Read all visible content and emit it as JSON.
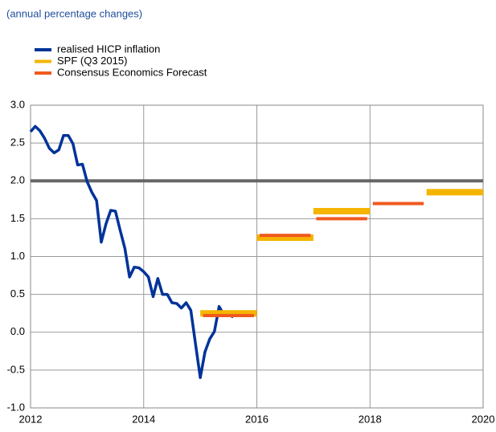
{
  "chart_data": {
    "type": "line",
    "subtitle": "(annual percentage changes)",
    "xlim": [
      2012,
      2020
    ],
    "ylim": [
      -1,
      3
    ],
    "xticks": [
      2012,
      2014,
      2016,
      2018,
      2020
    ],
    "yticks": [
      {
        "value": 3,
        "label": "3.0"
      },
      2.5,
      {
        "value": 2,
        "label": "2.0"
      },
      1.5,
      {
        "value": 1,
        "label": "1.0"
      },
      0.5,
      {
        "value": 0,
        "label": "0.0"
      },
      -0.5,
      {
        "value": -1,
        "label": "-1.0"
      }
    ],
    "grid": true,
    "reference_line": {
      "value": 2,
      "color": "#666666"
    },
    "series": [
      {
        "name": "realised HICP inflation",
        "color": "#003399",
        "x": [
          2012,
          2012.083,
          2012.167,
          2012.25,
          2012.333,
          2012.417,
          2012.5,
          2012.583,
          2012.667,
          2012.75,
          2012.833,
          2012.917,
          2013,
          2013.083,
          2013.167,
          2013.25,
          2013.333,
          2013.417,
          2013.5,
          2013.583,
          2013.667,
          2013.75,
          2013.833,
          2013.917,
          2014,
          2014.083,
          2014.167,
          2014.25,
          2014.333,
          2014.417,
          2014.5,
          2014.583,
          2014.667,
          2014.75,
          2014.833,
          2014.917,
          2015,
          2015.083,
          2015.167,
          2015.25,
          2015.333,
          2015.417,
          2015.5,
          2015.583
        ],
        "values": [
          2.65,
          2.72,
          2.66,
          2.56,
          2.43,
          2.37,
          2.41,
          2.6,
          2.6,
          2.49,
          2.21,
          2.22,
          1.99,
          1.85,
          1.74,
          1.19,
          1.43,
          1.61,
          1.6,
          1.35,
          1.11,
          0.73,
          0.86,
          0.85,
          0.8,
          0.73,
          0.47,
          0.71,
          0.5,
          0.5,
          0.39,
          0.38,
          0.32,
          0.39,
          0.29,
          -0.16,
          -0.6,
          -0.26,
          -0.09,
          0.01,
          0.34,
          0.23,
          0.24,
          0.2
        ]
      },
      {
        "name": "SPF (Q3 2015)",
        "color": "#f5b400",
        "start": [
          2015,
          2016,
          2017,
          2019
        ],
        "end": [
          2016,
          2017,
          2018,
          2020
        ],
        "values": [
          0.25,
          1.25,
          1.6,
          1.85
        ]
      },
      {
        "name": "Consensus Economics Forecast",
        "color": "#f05a1e",
        "start": [
          2015.05,
          2016.05,
          2017.05,
          2018.05
        ],
        "end": [
          2015.95,
          2016.95,
          2017.95,
          2018.95
        ],
        "values": [
          0.22,
          1.28,
          1.5,
          1.7
        ]
      }
    ]
  }
}
